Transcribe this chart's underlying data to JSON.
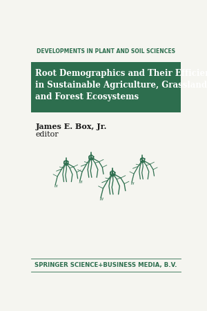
{
  "bg_color": "#f5f5f0",
  "series_header_text": "DEVELOPMENTS IN PLANT AND SOIL SCIENCES",
  "series_header_color": "#2d6e4e",
  "title_banner_color": "#2d6e4e",
  "title_text_line1": "Root Demographics and Their Efficiencies",
  "title_text_line2": "in Sustainable Agriculture, Grasslands",
  "title_text_line3": "and Forest Ecosystems",
  "title_text_color": "#ffffff",
  "author_line1": "James E. Box, Jr.",
  "author_line2": "editor",
  "author_color": "#1a1a1a",
  "publisher_text": "SPRINGER SCIENCE+BUSINESS MEDIA, B.V.",
  "publisher_color": "#2d6e4e",
  "root_color": "#2d6e4e"
}
